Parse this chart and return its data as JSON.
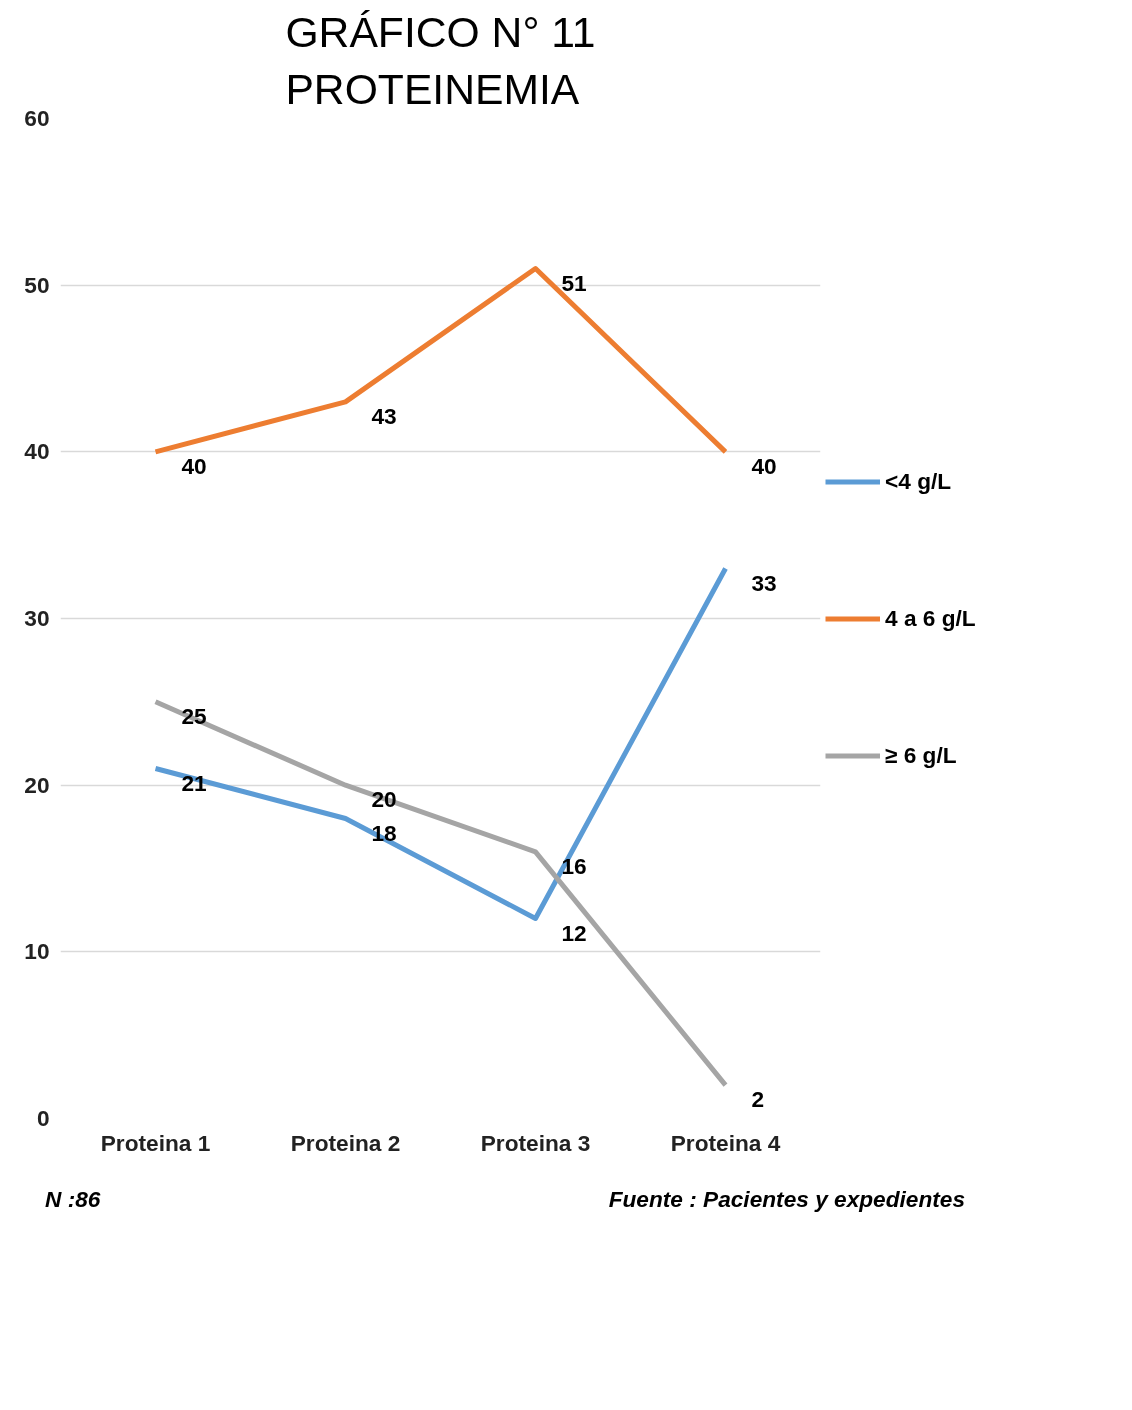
{
  "chart_data": {
    "type": "line",
    "title": "GRÁFICO N° 11\nPROTEINEMIA",
    "categories": [
      "Proteina 1",
      "Proteina 2",
      "Proteina 3",
      "Proteina 4"
    ],
    "series": [
      {
        "name": "<4 g/L",
        "color": "#5b9bd5",
        "values": [
          21,
          18,
          12,
          33
        ]
      },
      {
        "name": "4 a 6 g/L",
        "color": "#ed7d31",
        "values": [
          40,
          43,
          51,
          40
        ]
      },
      {
        "name": "≥ 6 g/L",
        "color": "#a5a5a5",
        "values": [
          25,
          20,
          16,
          2
        ]
      }
    ],
    "ylim": [
      0,
      60
    ],
    "yticks": [
      0,
      10,
      20,
      30,
      40,
      50,
      60
    ],
    "grid": "y",
    "legend": "right",
    "data_labels": true,
    "marker": "none",
    "line_style": "solid",
    "annotations": [
      "N :86",
      "Fuente : Pacientes y expedientes"
    ]
  }
}
